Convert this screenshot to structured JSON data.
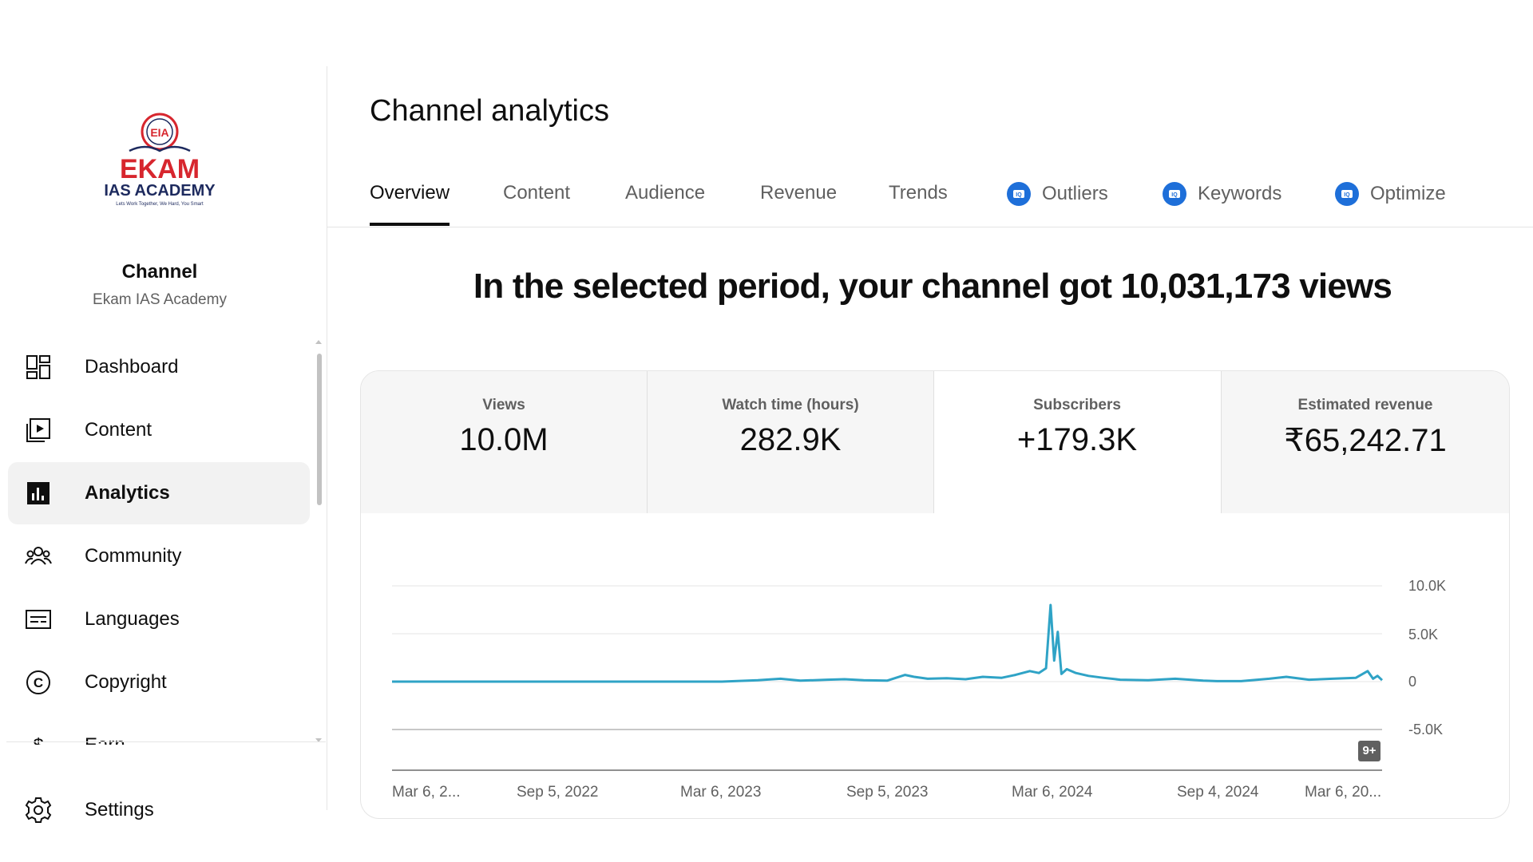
{
  "sidebar": {
    "logo_text": "EKAM",
    "logo_subtext": "IAS ACADEMY",
    "logo_tagline": "Lets Work Together, We Hard, You Smart",
    "channel_title": "Channel",
    "channel_name": "Ekam IAS Academy",
    "items": [
      {
        "label": "Dashboard",
        "icon": "dashboard-icon"
      },
      {
        "label": "Content",
        "icon": "content-icon"
      },
      {
        "label": "Analytics",
        "icon": "analytics-icon",
        "active": true
      },
      {
        "label": "Community",
        "icon": "community-icon"
      },
      {
        "label": "Languages",
        "icon": "languages-icon"
      },
      {
        "label": "Copyright",
        "icon": "copyright-icon"
      },
      {
        "label": "Earn",
        "icon": "earn-icon"
      }
    ],
    "settings_label": "Settings"
  },
  "main": {
    "title": "Channel analytics",
    "tabs": [
      {
        "label": "Overview",
        "active": true
      },
      {
        "label": "Content"
      },
      {
        "label": "Audience"
      },
      {
        "label": "Revenue"
      },
      {
        "label": "Trends"
      },
      {
        "label": "Outliers",
        "badge": "vidiq-icon"
      },
      {
        "label": "Keywords",
        "badge": "vidiq-icon"
      },
      {
        "label": "Optimize",
        "badge": "vidiq-icon"
      }
    ],
    "headline": "In the selected period, your channel got 10,031,173 views",
    "metrics": [
      {
        "label": "Views",
        "value": "10.0M"
      },
      {
        "label": "Watch time (hours)",
        "value": "282.9K"
      },
      {
        "label": "Subscribers",
        "value": "+179.3K",
        "selected": true
      },
      {
        "label": "Estimated revenue",
        "value": "₹65,242.71"
      }
    ],
    "annotation_badge": "9+"
  },
  "colors": {
    "accent": "#2fa3c6",
    "badge_blue": "#1e6fd9",
    "text_primary": "#0f0f0f",
    "text_secondary": "#606060"
  },
  "chart_data": {
    "type": "line",
    "title": "",
    "xlabel": "",
    "ylabel": "",
    "ylim": [
      -5000,
      10000
    ],
    "yticks": [
      "10.0K",
      "5.0K",
      "0",
      "-5.0K"
    ],
    "xticks": [
      "Mar 6, 2...",
      "Sep 5, 2022",
      "Mar 6, 2023",
      "Sep 5, 2023",
      "Mar 6, 2024",
      "Sep 4, 2024",
      "Mar 6, 20..."
    ],
    "x_range": [
      "2022-03-06",
      "2025-03-06"
    ],
    "series": [
      {
        "values": [
          {
            "x": "2022-03-06",
            "y": 0
          },
          {
            "x": "2022-06-01",
            "y": 0
          },
          {
            "x": "2022-09-05",
            "y": 0
          },
          {
            "x": "2022-12-01",
            "y": 0
          },
          {
            "x": "2023-03-06",
            "y": 0
          },
          {
            "x": "2023-04-15",
            "y": 150
          },
          {
            "x": "2023-05-10",
            "y": 300
          },
          {
            "x": "2023-06-01",
            "y": 100
          },
          {
            "x": "2023-07-01",
            "y": 200
          },
          {
            "x": "2023-07-20",
            "y": 250
          },
          {
            "x": "2023-08-10",
            "y": 150
          },
          {
            "x": "2023-09-05",
            "y": 100
          },
          {
            "x": "2023-09-25",
            "y": 700
          },
          {
            "x": "2023-10-05",
            "y": 500
          },
          {
            "x": "2023-10-20",
            "y": 300
          },
          {
            "x": "2023-11-10",
            "y": 350
          },
          {
            "x": "2023-12-01",
            "y": 250
          },
          {
            "x": "2023-12-20",
            "y": 500
          },
          {
            "x": "2024-01-10",
            "y": 400
          },
          {
            "x": "2024-01-25",
            "y": 700
          },
          {
            "x": "2024-02-10",
            "y": 1100
          },
          {
            "x": "2024-02-20",
            "y": 900
          },
          {
            "x": "2024-02-28",
            "y": 1400
          },
          {
            "x": "2024-03-04",
            "y": 8000
          },
          {
            "x": "2024-03-08",
            "y": 2200
          },
          {
            "x": "2024-03-12",
            "y": 5200
          },
          {
            "x": "2024-03-16",
            "y": 800
          },
          {
            "x": "2024-03-22",
            "y": 1300
          },
          {
            "x": "2024-04-01",
            "y": 900
          },
          {
            "x": "2024-04-15",
            "y": 600
          },
          {
            "x": "2024-05-01",
            "y": 400
          },
          {
            "x": "2024-05-20",
            "y": 200
          },
          {
            "x": "2024-06-20",
            "y": 150
          },
          {
            "x": "2024-07-20",
            "y": 300
          },
          {
            "x": "2024-08-20",
            "y": 100
          },
          {
            "x": "2024-09-04",
            "y": 50
          },
          {
            "x": "2024-10-01",
            "y": 50
          },
          {
            "x": "2024-11-01",
            "y": 300
          },
          {
            "x": "2024-11-20",
            "y": 500
          },
          {
            "x": "2024-12-15",
            "y": 200
          },
          {
            "x": "2025-01-10",
            "y": 300
          },
          {
            "x": "2025-02-05",
            "y": 400
          },
          {
            "x": "2025-02-18",
            "y": 1100
          },
          {
            "x": "2025-02-24",
            "y": 300
          },
          {
            "x": "2025-03-01",
            "y": 600
          },
          {
            "x": "2025-03-06",
            "y": 150
          }
        ]
      }
    ],
    "grid": true
  }
}
